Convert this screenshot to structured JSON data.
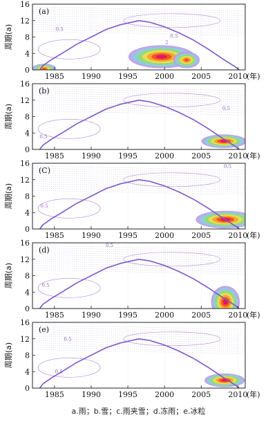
{
  "caption": "a.雨；b.雪；c.雨夹雪；d.冻雨；e.冰粒",
  "colors": {
    "coi": "#7b58c8",
    "contour": "#b48ad8",
    "grid": "#c8c0e0",
    "power_levels": [
      "#b9a6ea",
      "#86d2dc",
      "#9ad873",
      "#e9e04f",
      "#f7a03c",
      "#f0521a",
      "#e0126a"
    ]
  },
  "chart_data": [
    {
      "panel": "a",
      "panel_label": "(a)",
      "type": "heatmap",
      "ylabel": "周期(a)",
      "x_unit": "(年)",
      "xlim": [
        1982,
        2011
      ],
      "ylim": [
        0,
        16
      ],
      "xticks": [
        1985,
        1990,
        1995,
        2000,
        2005,
        2010
      ],
      "yticks": [
        0,
        4,
        8,
        12,
        16
      ],
      "contour_labels": [
        {
          "text": "0.5",
          "x": 1985.7,
          "y": 9.5
        },
        {
          "text": "0.5",
          "x": 2001.3,
          "y": 7.8
        },
        {
          "text": "2",
          "x": 2000.3,
          "y": 6.3
        }
      ],
      "peaks": [
        {
          "x": 1999.6,
          "y": 3.2,
          "sx": 2.8,
          "sy": 1.7,
          "level": 6
        },
        {
          "x": 2003.0,
          "y": 2.4,
          "sx": 1.1,
          "sy": 1.2,
          "level": 5
        },
        {
          "x": 1983.6,
          "y": 0.3,
          "sx": 1.0,
          "sy": 0.7,
          "level": 5
        }
      ]
    },
    {
      "panel": "b",
      "panel_label": "(b)",
      "type": "heatmap",
      "ylabel": "周期(a)",
      "x_unit": "(年)",
      "xlim": [
        1982,
        2011
      ],
      "ylim": [
        0,
        16
      ],
      "xticks": [
        1985,
        1990,
        1995,
        2000,
        2005,
        2010
      ],
      "yticks": [
        0,
        4,
        8,
        12,
        16
      ],
      "contour_labels": [
        {
          "text": "0.5",
          "x": 2008.4,
          "y": 9.6
        },
        {
          "text": "0.5",
          "x": 1983.5,
          "y": 2.7
        }
      ],
      "peaks": [
        {
          "x": 2008.1,
          "y": 2.0,
          "sx": 1.9,
          "sy": 1.0,
          "level": 6
        }
      ]
    },
    {
      "panel": "c",
      "panel_label": "(C)",
      "type": "heatmap",
      "ylabel": "周期(a)",
      "x_unit": "(年)",
      "xlim": [
        1982,
        2011
      ],
      "ylim": [
        0,
        16
      ],
      "xticks": [
        1985,
        1990,
        1995,
        2000,
        2005,
        2010
      ],
      "yticks": [
        0,
        4,
        8,
        12,
        16
      ],
      "contour_labels": [
        {
          "text": "0.5",
          "x": 2008.6,
          "y": 14.8
        },
        {
          "text": "0.5",
          "x": 1983.6,
          "y": 5.2
        }
      ],
      "peaks": [
        {
          "x": 2008.3,
          "y": 2.3,
          "sx": 2.5,
          "sy": 1.3,
          "level": 6
        }
      ]
    },
    {
      "panel": "d",
      "panel_label": "(d)",
      "type": "heatmap",
      "ylabel": "周期(a)",
      "x_unit": "(年)",
      "xlim": [
        1982,
        2011
      ],
      "ylim": [
        0,
        16
      ],
      "xticks": [
        1985,
        1990,
        1995,
        2000,
        2005,
        2010
      ],
      "yticks": [
        0,
        4,
        8,
        12,
        16
      ],
      "contour_labels": [
        {
          "text": "0.5",
          "x": 1992.5,
          "y": 15.0
        },
        {
          "text": "0.5",
          "x": 1983.8,
          "y": 5.3
        }
      ],
      "peaks": [
        {
          "x": 2008.3,
          "y": 1.6,
          "sx": 1.2,
          "sy": 2.4,
          "level": 6
        }
      ]
    },
    {
      "panel": "e",
      "panel_label": "(e)",
      "type": "heatmap",
      "ylabel": "周期(a)",
      "x_unit": "(年)",
      "xlim": [
        1982,
        2011
      ],
      "ylim": [
        0,
        16
      ],
      "xticks": [
        1985,
        1990,
        1995,
        2000,
        2005,
        2010
      ],
      "yticks": [
        0,
        4,
        8,
        12,
        16
      ],
      "contour_labels": [
        {
          "text": "0.5",
          "x": 1986.8,
          "y": 11.5
        },
        {
          "text": "0.5",
          "x": 1985.6,
          "y": 3.6
        }
      ],
      "peaks": [
        {
          "x": 2008.2,
          "y": 1.9,
          "sx": 1.7,
          "sy": 1.0,
          "level": 6
        }
      ]
    }
  ]
}
